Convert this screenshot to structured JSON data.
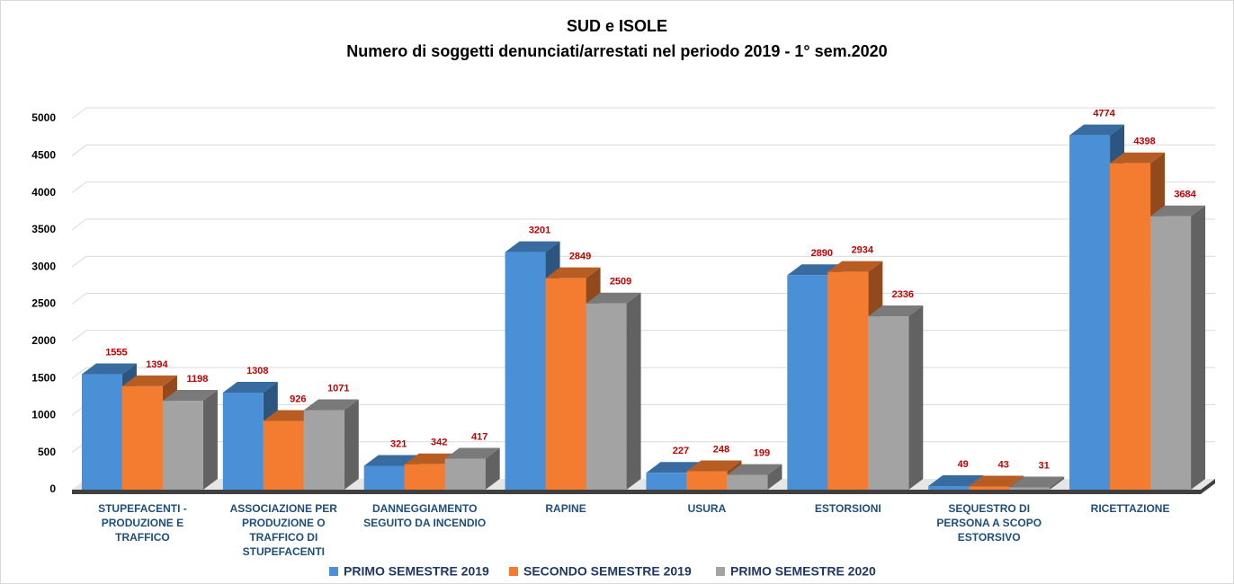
{
  "chart_data": {
    "type": "bar3d",
    "title": "SUD e ISOLE",
    "subtitle": "Numero di soggetti denunciati/arrestati nel periodo 2019 - 1° sem.2020",
    "categories": [
      "STUPEFACENTI - PRODUZIONE E TRAFFICO",
      "ASSOCIAZIONE PER PRODUZIONE O TRAFFICO DI STUPEFACENTI",
      "DANNEGGIAMENTO SEGUITO DA INCENDIO",
      "RAPINE",
      "USURA",
      "ESTORSIONI",
      "SEQUESTRO DI PERSONA A SCOPO ESTORSIVO",
      "RICETTAZIONE"
    ],
    "series": [
      {
        "name": "PRIMO SEMESTRE 2019",
        "color": "#4a90d6",
        "values": [
          1555,
          1308,
          321,
          3201,
          227,
          2890,
          49,
          4774
        ]
      },
      {
        "name": "SECONDO SEMESTRE 2019",
        "color": "#f47c30",
        "values": [
          1394,
          926,
          342,
          2849,
          248,
          2934,
          43,
          4398
        ]
      },
      {
        "name": "PRIMO SEMESTRE 2020",
        "color": "#a3a3a3",
        "values": [
          1198,
          1071,
          417,
          2509,
          199,
          2336,
          31,
          3684
        ]
      }
    ],
    "ylim": [
      0,
      5000
    ],
    "yticks": [
      0,
      500,
      1000,
      1500,
      2000,
      2500,
      3000,
      3500,
      4000,
      4500,
      5000
    ],
    "grid": true,
    "legend": "bottom"
  }
}
